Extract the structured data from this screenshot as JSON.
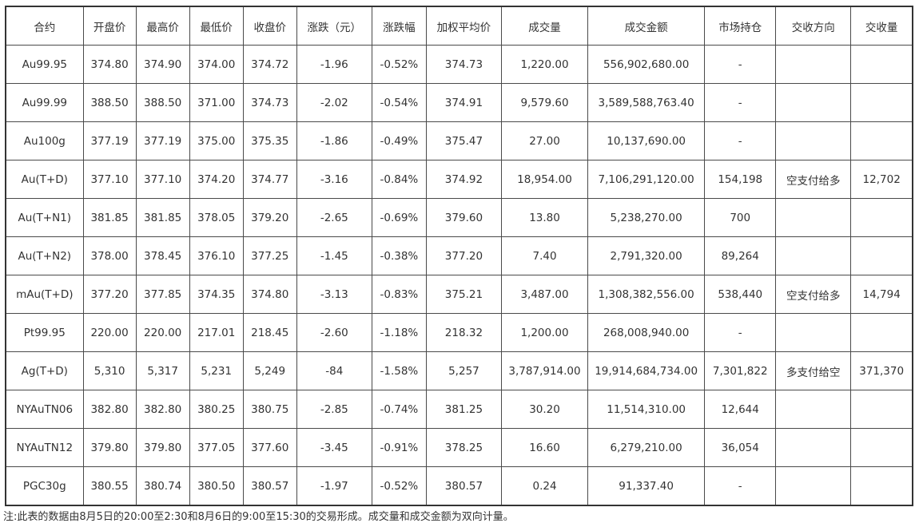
{
  "table": {
    "columns": [
      "合约",
      "开盘价",
      "最高价",
      "最低价",
      "收盘价",
      "涨跌（元）",
      "涨跌幅",
      "加权平均价",
      "成交量",
      "成交金额",
      "市场持仓",
      "交收方向",
      "交收量"
    ],
    "rows": [
      [
        "Au99.95",
        "374.80",
        "374.90",
        "374.00",
        "374.72",
        "-1.96",
        "-0.52%",
        "374.73",
        "1,220.00",
        "556,902,680.00",
        "-",
        "",
        ""
      ],
      [
        "Au99.99",
        "388.50",
        "388.50",
        "371.00",
        "374.73",
        "-2.02",
        "-0.54%",
        "374.91",
        "9,579.60",
        "3,589,588,763.40",
        "-",
        "",
        ""
      ],
      [
        "Au100g",
        "377.19",
        "377.19",
        "375.00",
        "375.35",
        "-1.86",
        "-0.49%",
        "375.47",
        "27.00",
        "10,137,690.00",
        "-",
        "",
        ""
      ],
      [
        "Au(T+D)",
        "377.10",
        "377.10",
        "374.20",
        "374.77",
        "-3.16",
        "-0.84%",
        "374.92",
        "18,954.00",
        "7,106,291,120.00",
        "154,198",
        "空支付给多",
        "12,702"
      ],
      [
        "Au(T+N1)",
        "381.85",
        "381.85",
        "378.05",
        "379.20",
        "-2.65",
        "-0.69%",
        "379.60",
        "13.80",
        "5,238,270.00",
        "700",
        "",
        ""
      ],
      [
        "Au(T+N2)",
        "378.00",
        "378.45",
        "376.10",
        "377.25",
        "-1.45",
        "-0.38%",
        "377.20",
        "7.40",
        "2,791,320.00",
        "89,264",
        "",
        ""
      ],
      [
        "mAu(T+D)",
        "377.20",
        "377.85",
        "374.35",
        "374.80",
        "-3.13",
        "-0.83%",
        "375.21",
        "3,487.00",
        "1,308,382,556.00",
        "538,440",
        "空支付给多",
        "14,794"
      ],
      [
        "Pt99.95",
        "220.00",
        "220.00",
        "217.01",
        "218.45",
        "-2.60",
        "-1.18%",
        "218.32",
        "1,200.00",
        "268,008,940.00",
        "-",
        "",
        ""
      ],
      [
        "Ag(T+D)",
        "5,310",
        "5,317",
        "5,231",
        "5,249",
        "-84",
        "-1.58%",
        "5,257",
        "3,787,914.00",
        "19,914,684,734.00",
        "7,301,822",
        "多支付给空",
        "371,370"
      ],
      [
        "NYAuTN06",
        "382.80",
        "382.80",
        "380.25",
        "380.75",
        "-2.85",
        "-0.74%",
        "381.25",
        "30.20",
        "11,514,310.00",
        "12,644",
        "",
        ""
      ],
      [
        "NYAuTN12",
        "379.80",
        "379.80",
        "377.05",
        "377.60",
        "-3.45",
        "-0.91%",
        "378.25",
        "16.60",
        "6,279,210.00",
        "36,054",
        "",
        ""
      ],
      [
        "PGC30g",
        "380.55",
        "380.74",
        "380.50",
        "380.57",
        "-1.97",
        "-0.52%",
        "380.57",
        "0.24",
        "91,337.40",
        "-",
        "",
        ""
      ]
    ]
  },
  "note": "注:此表的数据由8月5日的20:00至2:30和8月6日的9:00至15:30的交易形成。成交量和成交金额为双向计量。"
}
